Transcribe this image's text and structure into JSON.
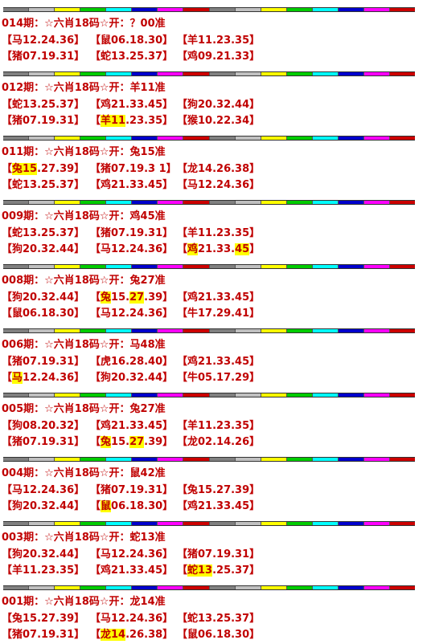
{
  "stripe_colors": [
    "#808080",
    "#c0c0c0",
    "#ffff00",
    "#00cc00",
    "#00ffff",
    "#0000cc",
    "#ff00ff",
    "#cc0000",
    "#808080",
    "#c0c0c0",
    "#ffff00",
    "#00cc00",
    "#00ffff",
    "#0000cc",
    "#ff00ff",
    "#cc0000"
  ],
  "text_color": "#c00000",
  "highlight_color": "#ffff00",
  "entries": [
    {
      "title": "014期：☆六肖18码☆开：？00准",
      "rows": [
        [
          [
            {
              "t": "【马12.24.36】"
            }
          ],
          [
            {
              "t": "【鼠06.18.30】"
            }
          ],
          [
            {
              "t": "【羊11.23.35】"
            }
          ]
        ],
        [
          [
            {
              "t": "【猪07.19.31】"
            }
          ],
          [
            {
              "t": "【蛇13.25.37】"
            }
          ],
          [
            {
              "t": "【鸡09.21.33】"
            }
          ]
        ]
      ]
    },
    {
      "title": "012期：☆六肖18码☆开：羊11准",
      "rows": [
        [
          [
            {
              "t": "【蛇13.25.37】"
            }
          ],
          [
            {
              "t": "【鸡21.33.45】"
            }
          ],
          [
            {
              "t": "【狗20.32.44】"
            }
          ]
        ],
        [
          [
            {
              "t": "【猪07.19.31】"
            }
          ],
          [
            {
              "t": "【"
            },
            {
              "t": "羊11",
              "h": true
            },
            {
              "t": ".23.35】"
            }
          ],
          [
            {
              "t": "【猴10.22.34】"
            }
          ]
        ]
      ]
    },
    {
      "title": "011期：☆六肖18码☆开：兔15准",
      "rows": [
        [
          [
            {
              "t": "【"
            },
            {
              "t": "兔15",
              "h": true
            },
            {
              "t": ".27.39】"
            }
          ],
          [
            {
              "t": "【猪07.19.3 1】"
            }
          ],
          [
            {
              "t": "【龙14.26.38】"
            }
          ]
        ],
        [
          [
            {
              "t": "【蛇13.25.37】"
            }
          ],
          [
            {
              "t": "【鸡21.33.45】"
            }
          ],
          [
            {
              "t": "【马12.24.36】"
            }
          ]
        ]
      ]
    },
    {
      "title": "009期：☆六肖18码☆开：鸡45准",
      "rows": [
        [
          [
            {
              "t": "【蛇13.25.37】"
            }
          ],
          [
            {
              "t": "【猪07.19.31】"
            }
          ],
          [
            {
              "t": "【羊11.23.35】"
            }
          ]
        ],
        [
          [
            {
              "t": "【狗20.32.44】"
            }
          ],
          [
            {
              "t": "【马12.24.36】"
            }
          ],
          [
            {
              "t": "【"
            },
            {
              "t": "鸡",
              "h": true
            },
            {
              "t": "21.33."
            },
            {
              "t": "45",
              "h": true
            },
            {
              "t": "】"
            }
          ]
        ]
      ]
    },
    {
      "title": "008期：☆六肖18码☆开：兔27准",
      "rows": [
        [
          [
            {
              "t": "【狗20.32.44】"
            }
          ],
          [
            {
              "t": "【"
            },
            {
              "t": "兔",
              "h": true
            },
            {
              "t": "15."
            },
            {
              "t": "27",
              "h": true
            },
            {
              "t": ".39】"
            }
          ],
          [
            {
              "t": "【鸡21.33.45】"
            }
          ]
        ],
        [
          [
            {
              "t": "【鼠06.18.30】"
            }
          ],
          [
            {
              "t": "【马12.24.36】"
            }
          ],
          [
            {
              "t": "【牛17.29.41】"
            }
          ]
        ]
      ]
    },
    {
      "title": "006期：☆六肖18码☆开：马48准",
      "rows": [
        [
          [
            {
              "t": "【猪07.19.31】"
            }
          ],
          [
            {
              "t": "【虎16.28.40】"
            }
          ],
          [
            {
              "t": "【鸡21.33.45】"
            }
          ]
        ],
        [
          [
            {
              "t": "【"
            },
            {
              "t": "马",
              "h": true
            },
            {
              "t": "12.24.36】"
            }
          ],
          [
            {
              "t": "【狗20.32.44】"
            }
          ],
          [
            {
              "t": "【牛05.17.29】"
            }
          ]
        ]
      ]
    },
    {
      "title": "005期：☆六肖18码☆开：兔27准",
      "rows": [
        [
          [
            {
              "t": "【狗08.20.32】"
            }
          ],
          [
            {
              "t": "【鸡21.33.45】"
            }
          ],
          [
            {
              "t": "【羊11.23.35】"
            }
          ]
        ],
        [
          [
            {
              "t": "【猪07.19.31】"
            }
          ],
          [
            {
              "t": "【"
            },
            {
              "t": "兔",
              "h": true
            },
            {
              "t": "15."
            },
            {
              "t": "27",
              "h": true
            },
            {
              "t": ".39】"
            }
          ],
          [
            {
              "t": "【龙02.14.26】"
            }
          ]
        ]
      ]
    },
    {
      "title": "004期：☆六肖18码☆开：鼠42准",
      "rows": [
        [
          [
            {
              "t": "【马12.24.36】"
            }
          ],
          [
            {
              "t": "【猪07.19.31】"
            }
          ],
          [
            {
              "t": "【兔15.27.39】"
            }
          ]
        ],
        [
          [
            {
              "t": "【狗20.32.44】"
            }
          ],
          [
            {
              "t": "【"
            },
            {
              "t": "鼠",
              "h": true
            },
            {
              "t": "06.18.30】"
            }
          ],
          [
            {
              "t": "【鸡21.33.45】"
            }
          ]
        ]
      ]
    },
    {
      "title": "003期：☆六肖18码☆开：蛇13准",
      "rows": [
        [
          [
            {
              "t": "【狗20.32.44】"
            }
          ],
          [
            {
              "t": "【马12.24.36】"
            }
          ],
          [
            {
              "t": "【猪07.19.31】"
            }
          ]
        ],
        [
          [
            {
              "t": "【羊11.23.35】"
            }
          ],
          [
            {
              "t": "【鸡21.33.45】"
            }
          ],
          [
            {
              "t": "【"
            },
            {
              "t": "蛇13",
              "h": true
            },
            {
              "t": ".25.37】"
            }
          ]
        ]
      ]
    },
    {
      "title": "001期：☆六肖18码☆开：龙14准",
      "rows": [
        [
          [
            {
              "t": "【兔15.27.39】"
            }
          ],
          [
            {
              "t": "【马12.24.36】"
            }
          ],
          [
            {
              "t": "【蛇13.25.37】"
            }
          ]
        ],
        [
          [
            {
              "t": "【猪07.19.31】"
            }
          ],
          [
            {
              "t": "【"
            },
            {
              "t": "龙14",
              "h": true
            },
            {
              "t": ".26.38】"
            }
          ],
          [
            {
              "t": "【鼠06.18.30】"
            }
          ]
        ]
      ]
    }
  ]
}
